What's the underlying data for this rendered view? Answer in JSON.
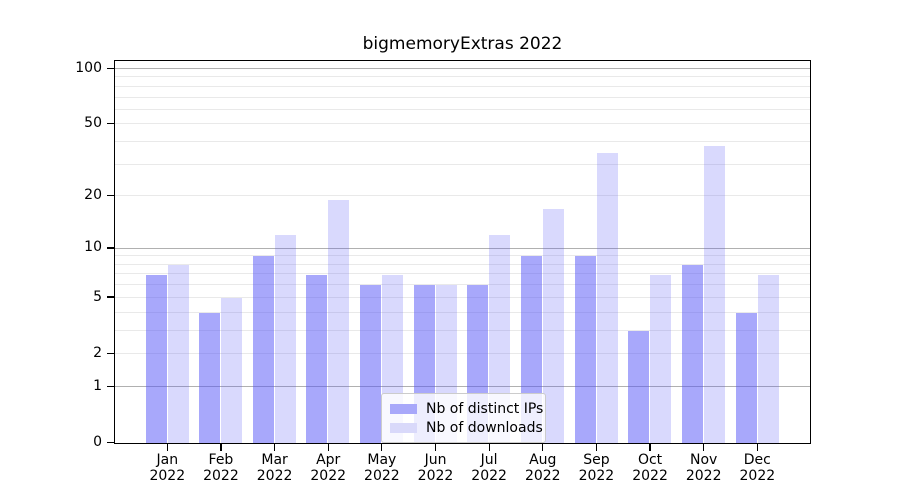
{
  "chart_data": {
    "type": "bar",
    "title": "bigmemoryExtras 2022",
    "categories": [
      "Jan 2022",
      "Feb 2022",
      "Mar 2022",
      "Apr 2022",
      "May 2022",
      "Jun 2022",
      "Jul 2022",
      "Aug 2022",
      "Sep 2022",
      "Oct 2022",
      "Nov 2022",
      "Dec 2022"
    ],
    "series": [
      {
        "name": "Nb of distinct IPs",
        "solid_color": "#a8a8fa",
        "fill_rgba": "rgba(82,82,248,0.50)",
        "values": [
          7,
          4,
          9,
          7,
          6,
          6,
          6,
          9,
          9,
          3,
          8,
          4
        ]
      },
      {
        "name": "Nb of downloads",
        "solid_color": "#d9d9fa",
        "fill_rgba": "rgba(82,82,248,0.22)",
        "values": [
          8,
          5,
          12,
          19,
          7,
          6,
          12,
          17,
          35,
          7,
          38,
          7
        ]
      }
    ],
    "xlabel": "",
    "ylabel": "",
    "yscale": "log1p",
    "ylim": [
      0,
      100
    ],
    "yticks": [
      0,
      1,
      2,
      5,
      10,
      20,
      50,
      100
    ],
    "major_gridlines": [
      1,
      10,
      100
    ],
    "minor_gridlines": [
      2,
      3,
      4,
      5,
      6,
      7,
      8,
      9,
      20,
      30,
      40,
      50,
      60,
      70,
      80,
      90
    ],
    "grid": true,
    "legend_position": "lower-center-inside",
    "colors": {
      "axis": "#000000",
      "major_grid": "#b0b0b0",
      "minor_grid": "#e9e9e9",
      "legend_border": "#cccccc",
      "text": "#000000"
    }
  },
  "legend": {
    "items": [
      {
        "label": "Nb of distinct IPs"
      },
      {
        "label": "Nb of downloads"
      }
    ]
  }
}
